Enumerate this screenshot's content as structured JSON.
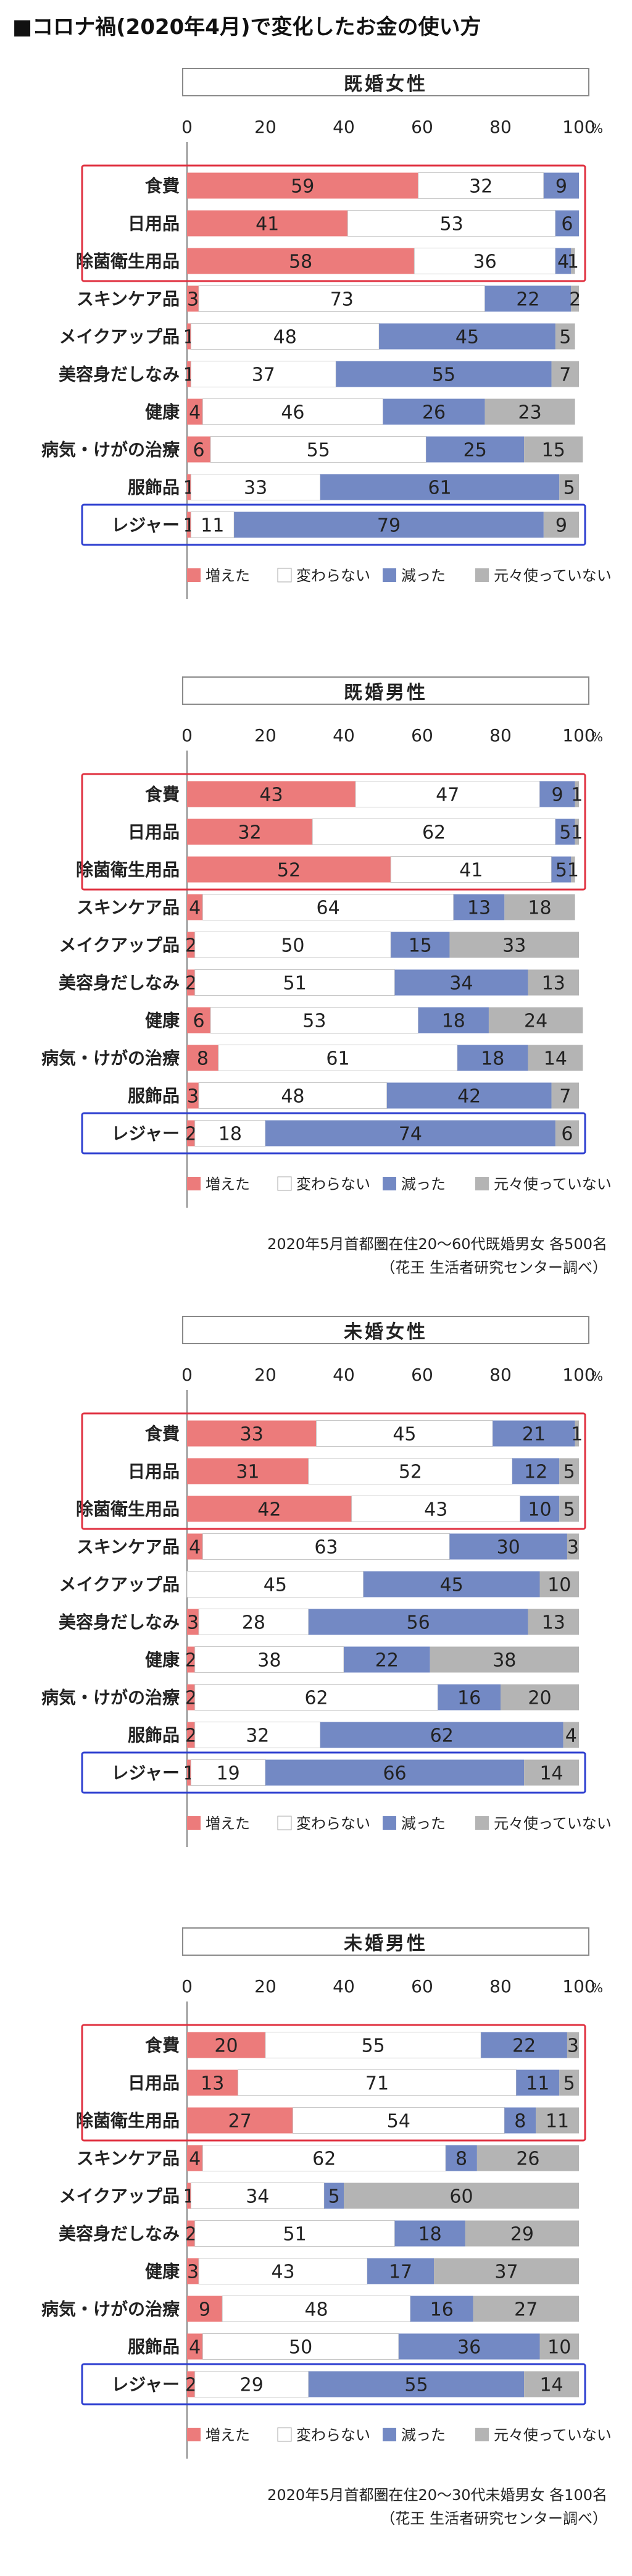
{
  "title": "■コロナ禍(2020年4月)で変化したお金の使い方",
  "categories": [
    "食費",
    "日用品",
    "除菌衛生用品",
    "スキンケア品",
    "メイクアップ品",
    "美容身だしなみ",
    "健康",
    "病気・けがの治療",
    "服飾品",
    "レジャー"
  ],
  "legend": [
    "増えた",
    "変わらない",
    "減った",
    "元々使っていない"
  ],
  "axis": {
    "ticks": [
      0,
      20,
      40,
      60,
      80,
      100
    ],
    "tick_labels": [
      "0",
      "20",
      "40",
      "60",
      "80",
      "100"
    ],
    "unit": "%"
  },
  "colors": {
    "increased": "#ec7b7b",
    "unchanged": "#ffffff",
    "decreased": "#7389c4",
    "not_used": "#b4b4b4",
    "highlight_red": "#e03140",
    "highlight_blue": "#2e3fd0",
    "title_border": "#8a8a8a"
  },
  "chart_data": [
    {
      "type": "bar",
      "stacked": true,
      "orientation": "horizontal",
      "title": "既婚女性",
      "categories": [
        "食費",
        "日用品",
        "除菌衛生用品",
        "スキンケア品",
        "メイクアップ品",
        "美容身だしなみ",
        "健康",
        "病気・けがの治療",
        "服飾品",
        "レジャー"
      ],
      "xlim": [
        0,
        100
      ],
      "series": [
        {
          "name": "増えた",
          "values": [
            59,
            41,
            58,
            3,
            1,
            1,
            4,
            6,
            1,
            1
          ]
        },
        {
          "name": "変わらない",
          "values": [
            32,
            53,
            36,
            73,
            48,
            37,
            46,
            55,
            33,
            11
          ]
        },
        {
          "name": "減った",
          "values": [
            9,
            6,
            4,
            22,
            45,
            55,
            26,
            25,
            61,
            79
          ]
        },
        {
          "name": "元々使っていない",
          "values": [
            0,
            0,
            1,
            2,
            5,
            7,
            23,
            15,
            5,
            9
          ]
        }
      ],
      "labels": [
        [
          "59",
          "32",
          "9",
          ""
        ],
        [
          "41",
          "53",
          "6",
          ""
        ],
        [
          "58",
          "36",
          "4",
          "1"
        ],
        [
          "3",
          "73",
          "22",
          "2"
        ],
        [
          "1",
          "48",
          "45",
          "5"
        ],
        [
          "1",
          "37",
          "55",
          "7"
        ],
        [
          "4",
          "46",
          "26",
          "23"
        ],
        [
          "6",
          "55",
          "25",
          "15"
        ],
        [
          "1",
          "33",
          "61",
          "5"
        ],
        [
          "1",
          "11",
          "79",
          "9"
        ]
      ],
      "source": []
    },
    {
      "type": "bar",
      "stacked": true,
      "orientation": "horizontal",
      "title": "既婚男性",
      "categories": [
        "食費",
        "日用品",
        "除菌衛生用品",
        "スキンケア品",
        "メイクアップ品",
        "美容身だしなみ",
        "健康",
        "病気・けがの治療",
        "服飾品",
        "レジャー"
      ],
      "xlim": [
        0,
        100
      ],
      "series": [
        {
          "name": "増えた",
          "values": [
            43,
            32,
            52,
            4,
            2,
            2,
            6,
            8,
            3,
            2
          ]
        },
        {
          "name": "変わらない",
          "values": [
            47,
            62,
            41,
            64,
            50,
            51,
            53,
            61,
            48,
            18
          ]
        },
        {
          "name": "減った",
          "values": [
            9,
            5,
            5,
            13,
            15,
            34,
            18,
            18,
            42,
            74
          ]
        },
        {
          "name": "元々使っていない",
          "values": [
            1,
            1,
            1,
            18,
            33,
            13,
            24,
            14,
            7,
            6
          ]
        }
      ],
      "labels": [
        [
          "43",
          "47",
          "9",
          "1"
        ],
        [
          "32",
          "62",
          "5",
          "1"
        ],
        [
          "52",
          "41",
          "5",
          "1"
        ],
        [
          "4",
          "64",
          "13",
          "18"
        ],
        [
          "2",
          "50",
          "15",
          "33"
        ],
        [
          "2",
          "51",
          "34",
          "13"
        ],
        [
          "6",
          "53",
          "18",
          "24"
        ],
        [
          "8",
          "61",
          "18",
          "14"
        ],
        [
          "3",
          "48",
          "42",
          "7"
        ],
        [
          "2",
          "18",
          "74",
          "6"
        ]
      ],
      "source": [
        "2020年5月首都圏在住20～60代既婚男女 各500名",
        "（花王 生活者研究センター調べ）"
      ]
    },
    {
      "type": "bar",
      "stacked": true,
      "orientation": "horizontal",
      "title": "未婚女性",
      "categories": [
        "食費",
        "日用品",
        "除菌衛生用品",
        "スキンケア品",
        "メイクアップ品",
        "美容身だしなみ",
        "健康",
        "病気・けがの治療",
        "服飾品",
        "レジャー"
      ],
      "xlim": [
        0,
        100
      ],
      "series": [
        {
          "name": "増えた",
          "values": [
            33,
            31,
            42,
            4,
            0,
            3,
            2,
            2,
            2,
            1
          ]
        },
        {
          "name": "変わらない",
          "values": [
            45,
            52,
            43,
            63,
            45,
            28,
            38,
            62,
            32,
            19
          ]
        },
        {
          "name": "減った",
          "values": [
            21,
            12,
            10,
            30,
            45,
            56,
            22,
            16,
            62,
            66
          ]
        },
        {
          "name": "元々使っていない",
          "values": [
            1,
            5,
            5,
            3,
            10,
            13,
            38,
            20,
            4,
            14
          ]
        }
      ],
      "labels": [
        [
          "33",
          "45",
          "21",
          "1"
        ],
        [
          "31",
          "52",
          "12",
          "5"
        ],
        [
          "42",
          "43",
          "10",
          "5"
        ],
        [
          "4",
          "63",
          "30",
          "3"
        ],
        [
          "",
          "45",
          "45",
          "10"
        ],
        [
          "3",
          "28",
          "56",
          "13"
        ],
        [
          "2",
          "38",
          "22",
          "38"
        ],
        [
          "2",
          "62",
          "16",
          "20"
        ],
        [
          "2",
          "32",
          "62",
          "4"
        ],
        [
          "1",
          "19",
          "66",
          "14"
        ]
      ],
      "source": []
    },
    {
      "type": "bar",
      "stacked": true,
      "orientation": "horizontal",
      "title": "未婚男性",
      "categories": [
        "食費",
        "日用品",
        "除菌衛生用品",
        "スキンケア品",
        "メイクアップ品",
        "美容身だしなみ",
        "健康",
        "病気・けがの治療",
        "服飾品",
        "レジャー"
      ],
      "xlim": [
        0,
        100
      ],
      "series": [
        {
          "name": "増えた",
          "values": [
            20,
            13,
            27,
            4,
            1,
            2,
            3,
            9,
            4,
            2
          ]
        },
        {
          "name": "変わらない",
          "values": [
            55,
            71,
            54,
            62,
            34,
            51,
            43,
            48,
            50,
            29
          ]
        },
        {
          "name": "減った",
          "values": [
            22,
            11,
            8,
            8,
            5,
            18,
            17,
            16,
            36,
            55
          ]
        },
        {
          "name": "元々使っていない",
          "values": [
            3,
            5,
            11,
            26,
            60,
            29,
            37,
            27,
            10,
            14
          ]
        }
      ],
      "labels": [
        [
          "20",
          "55",
          "22",
          "3"
        ],
        [
          "13",
          "71",
          "11",
          "5"
        ],
        [
          "27",
          "54",
          "8",
          "11"
        ],
        [
          "4",
          "62",
          "8",
          "26"
        ],
        [
          "1",
          "34",
          "5",
          "60"
        ],
        [
          "2",
          "51",
          "18",
          "29"
        ],
        [
          "3",
          "43",
          "17",
          "37"
        ],
        [
          "9",
          "48",
          "16",
          "27"
        ],
        [
          "4",
          "50",
          "36",
          "10"
        ],
        [
          "2",
          "29",
          "55",
          "14"
        ]
      ],
      "source": [
        "2020年5月首都圏在住20～30代未婚男女 各100名",
        "（花王 生活者研究センター調べ）"
      ]
    }
  ]
}
